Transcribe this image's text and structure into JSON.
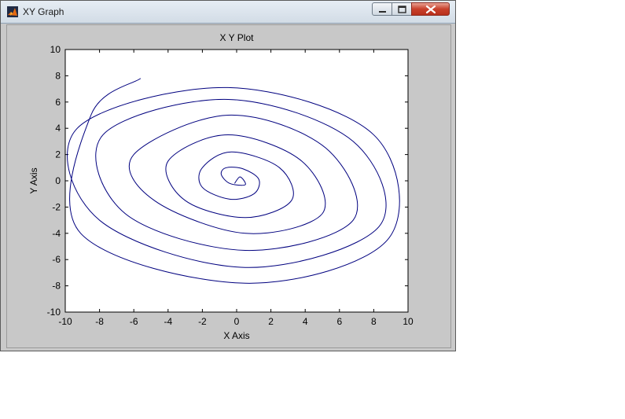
{
  "window": {
    "title": "XY Graph",
    "icon": "matlab-icon",
    "controls": {
      "minimize": "minimize-icon",
      "maximize": "maximize-icon",
      "close": "close-icon"
    }
  },
  "chart_data": {
    "type": "line",
    "title": "X Y Plot",
    "xlabel": "X Axis",
    "ylabel": "Y Axis",
    "xlim": [
      -10,
      10
    ],
    "ylim": [
      -10,
      10
    ],
    "xticks": [
      "-10",
      "-8",
      "-6",
      "-4",
      "-2",
      "0",
      "2",
      "4",
      "6",
      "8",
      "10"
    ],
    "yticks": [
      "10",
      "8",
      "6",
      "4",
      "2",
      "0",
      "-2",
      "-4",
      "-6",
      "-8",
      "-10"
    ],
    "grid": false,
    "series": [
      {
        "color": "#00007f",
        "x": [
          -0.12,
          0.2,
          0.5,
          -0.4,
          -0.9,
          -0.6,
          0.4,
          1.3,
          1.0,
          -0.4,
          -2.0,
          -2.0,
          -0.3,
          2.5,
          3.2,
          0.5,
          -3.0,
          -4.0,
          -0.5,
          3.8,
          5.0,
          0.5,
          -4.8,
          -6.0,
          -0.5,
          5.2,
          6.8,
          0.5,
          -6.5,
          -7.8,
          -0.5,
          6.8,
          8.3,
          0.5,
          -8.0,
          -9.3,
          -0.5,
          8.0,
          8.8,
          0.5,
          -9.1,
          -8.5,
          -5.6
        ],
        "y": [
          -0.2,
          0.3,
          -0.3,
          -0.2,
          0.5,
          1.0,
          0.9,
          0.1,
          -1.0,
          -1.4,
          -0.5,
          1.0,
          2.2,
          1.0,
          -1.5,
          -2.8,
          -1.5,
          1.5,
          3.5,
          1.5,
          -2.5,
          -4.0,
          -1.5,
          2.0,
          5.0,
          2.5,
          -3.0,
          -5.3,
          -2.5,
          3.5,
          6.2,
          3.0,
          -3.5,
          -6.6,
          -3.0,
          4.0,
          7.1,
          3.5,
          -4.5,
          -7.8,
          -4.0,
          5.0,
          7.8
        ]
      }
    ]
  }
}
